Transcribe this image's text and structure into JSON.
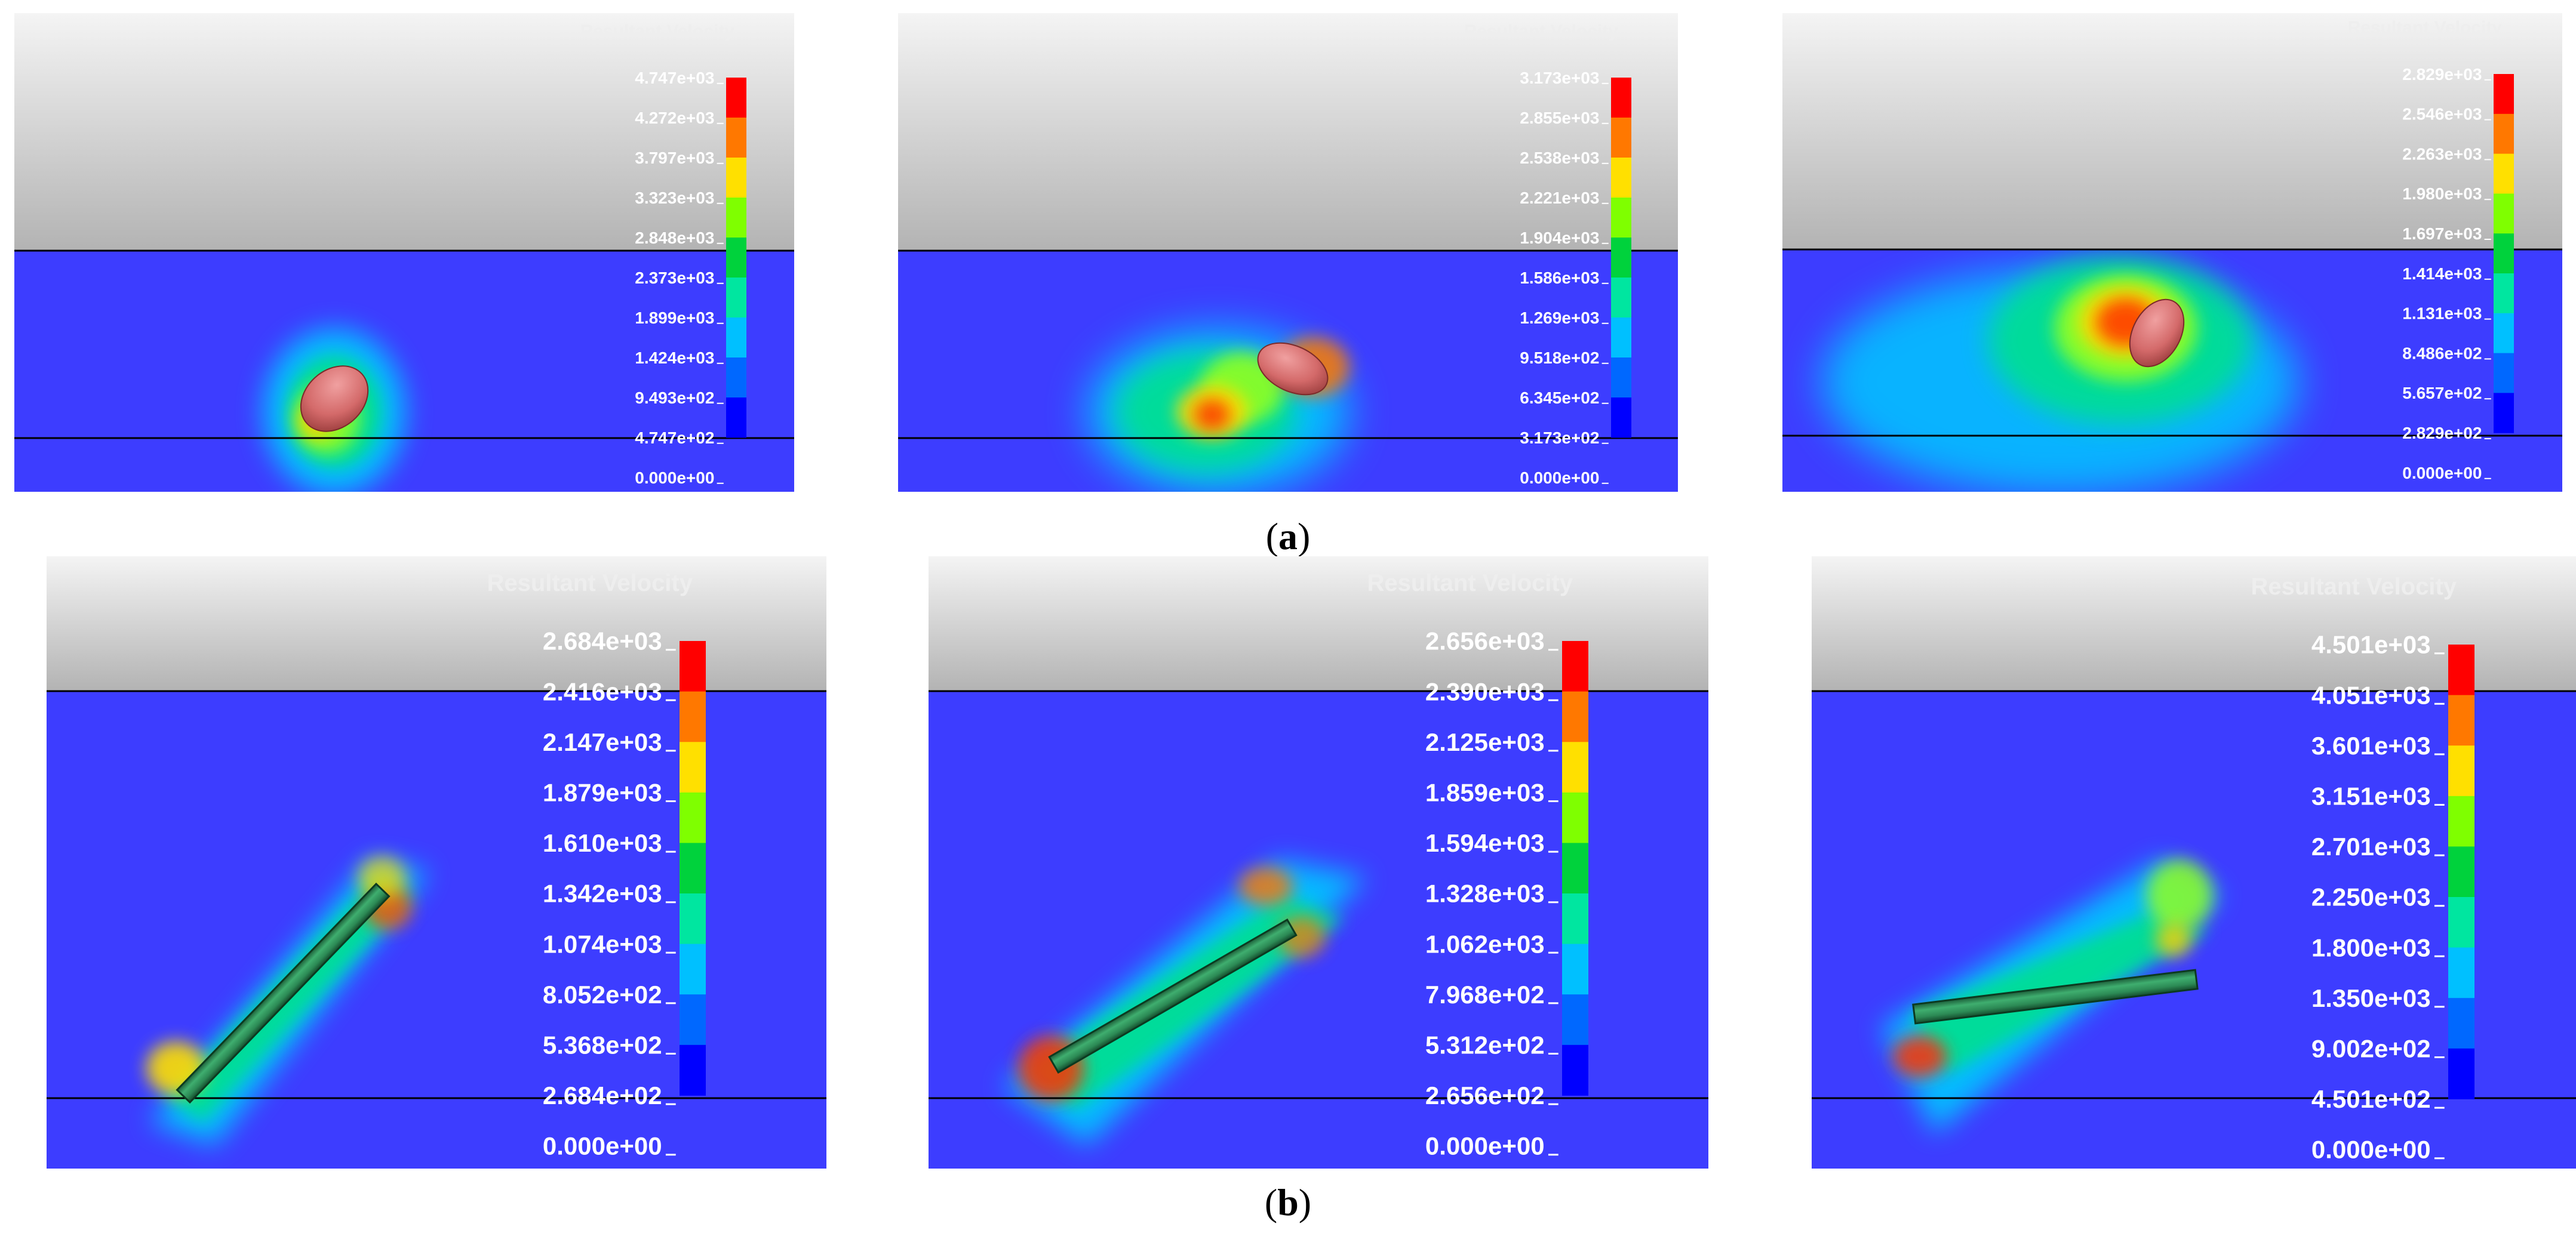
{
  "legend_title": "Resultant Velocity",
  "captions": {
    "row_a": "a",
    "row_b": "b"
  },
  "colors": {
    "sky_top": "#f4f4f4",
    "sky_bottom": "#b3b3b3",
    "fluid": "#3d3dff",
    "sphere": "#d46a6a",
    "rod": "#2c8a55",
    "scale": [
      "#0000ff",
      "#0068ff",
      "#00c0ff",
      "#00e6a0",
      "#00d23c",
      "#7fff00",
      "#ffe000",
      "#ff7800",
      "#ff0000"
    ]
  },
  "panels": [
    {
      "id": "a1",
      "projectile": "sphere",
      "labels": [
        "4.747e+03",
        "4.272e+03",
        "3.797e+03",
        "3.323e+03",
        "2.848e+03",
        "2.373e+03",
        "1.899e+03",
        "1.424e+03",
        "9.493e+02",
        "4.747e+02",
        "0.000e+00"
      ]
    },
    {
      "id": "a2",
      "projectile": "sphere",
      "labels": [
        "3.173e+03",
        "2.855e+03",
        "2.538e+03",
        "2.221e+03",
        "1.904e+03",
        "1.586e+03",
        "1.269e+03",
        "9.518e+02",
        "6.345e+02",
        "3.173e+02",
        "0.000e+00"
      ]
    },
    {
      "id": "a3",
      "projectile": "sphere",
      "labels": [
        "2.829e+03",
        "2.546e+03",
        "2.263e+03",
        "1.980e+03",
        "1.697e+03",
        "1.414e+03",
        "1.131e+03",
        "8.486e+02",
        "5.657e+02",
        "2.829e+02",
        "0.000e+00"
      ]
    },
    {
      "id": "b1",
      "projectile": "rod",
      "labels": [
        "2.684e+03",
        "2.416e+03",
        "2.147e+03",
        "1.879e+03",
        "1.610e+03",
        "1.342e+03",
        "1.074e+03",
        "8.052e+02",
        "5.368e+02",
        "2.684e+02",
        "0.000e+00"
      ]
    },
    {
      "id": "b2",
      "projectile": "rod",
      "labels": [
        "2.656e+03",
        "2.390e+03",
        "2.125e+03",
        "1.859e+03",
        "1.594e+03",
        "1.328e+03",
        "1.062e+03",
        "7.968e+02",
        "5.312e+02",
        "2.656e+02",
        "0.000e+00"
      ]
    },
    {
      "id": "b3",
      "projectile": "rod",
      "labels": [
        "4.501e+03",
        "4.051e+03",
        "3.601e+03",
        "3.151e+03",
        "2.701e+03",
        "2.250e+03",
        "1.800e+03",
        "1.350e+03",
        "9.002e+02",
        "4.501e+02",
        "0.000e+00"
      ]
    }
  ]
}
